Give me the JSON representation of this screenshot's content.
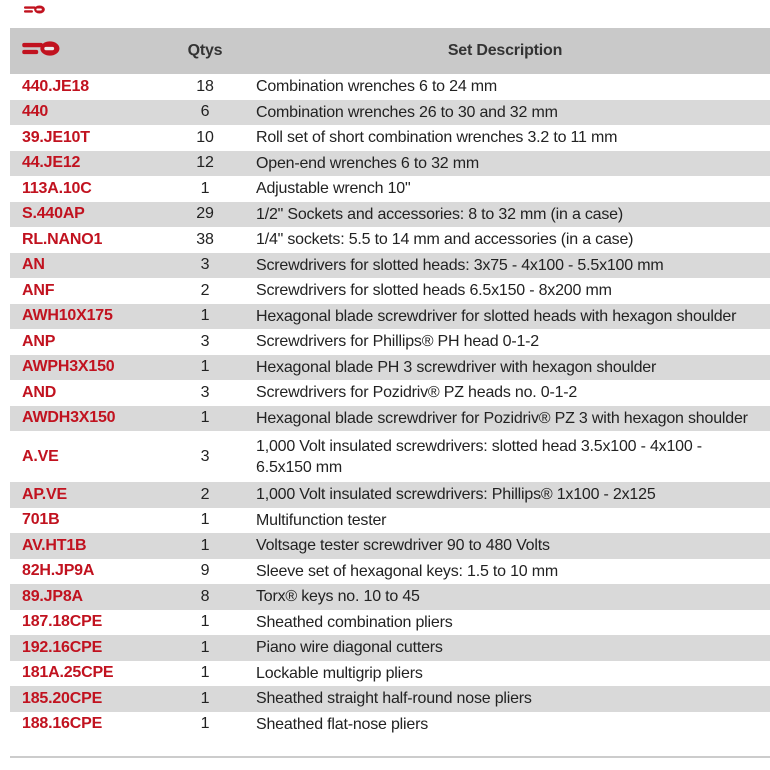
{
  "colors": {
    "red": "#c1121f",
    "header_bg": "#c9c9c9",
    "stripe_bg": "#d9d9d9",
    "text": "#222222",
    "rule": "#cccccc"
  },
  "header": {
    "logo_icon": "brand-speed-logo-icon",
    "qtys_label": "Qtys",
    "set_description_label": "Set Description"
  },
  "rows": [
    {
      "ref": "440.JE18",
      "qty": "18",
      "description": "Combination wrenches 6 to 24 mm"
    },
    {
      "ref": "440",
      "qty": "6",
      "description": "Combination wrenches 26 to 30 and 32 mm"
    },
    {
      "ref": "39.JE10T",
      "qty": "10",
      "description": "Roll set of short combination wrenches 3.2 to 11 mm"
    },
    {
      "ref": "44.JE12",
      "qty": "12",
      "description": "Open-end wrenches 6 to 32 mm"
    },
    {
      "ref": "113A.10C",
      "qty": "1",
      "description": "Adjustable wrench 10\""
    },
    {
      "ref": "S.440AP",
      "qty": "29",
      "description": "1/2\" Sockets and accessories: 8 to 32 mm (in a case)"
    },
    {
      "ref": "RL.NANO1",
      "qty": "38",
      "description": "1/4\" sockets: 5.5 to 14 mm and accessories (in a case)"
    },
    {
      "ref": "AN",
      "qty": "3",
      "description": "Screwdrivers for slotted heads: 3x75 - 4x100 - 5.5x100 mm"
    },
    {
      "ref": "ANF",
      "qty": "2",
      "description": "Screwdrivers for slotted heads 6.5x150 - 8x200 mm"
    },
    {
      "ref": "AWH10X175",
      "qty": "1",
      "description": "Hexagonal blade screwdriver for slotted heads with hexagon shoulder"
    },
    {
      "ref": "ANP",
      "qty": "3",
      "description": "Screwdrivers for Phillips® PH head 0-1-2"
    },
    {
      "ref": "AWPH3X150",
      "qty": "1",
      "description": "Hexagonal blade PH 3 screwdriver with hexagon shoulder"
    },
    {
      "ref": "AND",
      "qty": "3",
      "description": "Screwdrivers for Pozidriv® PZ heads no. 0-1-2"
    },
    {
      "ref": "AWDH3X150",
      "qty": "1",
      "description": "Hexagonal blade screwdriver for Pozidriv® PZ 3 with hexagon shoulder"
    },
    {
      "ref": "A.VE",
      "qty": "3",
      "description": [
        "1,000 Volt insulated screwdrivers: slotted head 3.5x100 - 4x100 -",
        "6.5x150 mm"
      ]
    },
    {
      "ref": "AP.VE",
      "qty": "2",
      "description": "1,000 Volt insulated screwdrivers: Phillips® 1x100 - 2x125"
    },
    {
      "ref": "701B",
      "qty": "1",
      "description": "Multifunction tester"
    },
    {
      "ref": "AV.HT1B",
      "qty": "1",
      "description": "Voltsage tester screwdriver 90 to 480 Volts"
    },
    {
      "ref": "82H.JP9A",
      "qty": "9",
      "description": "Sleeve set of hexagonal keys: 1.5 to 10 mm"
    },
    {
      "ref": "89.JP8A",
      "qty": "8",
      "description": "Torx® keys no. 10 to 45"
    },
    {
      "ref": "187.18CPE",
      "qty": "1",
      "description": "Sheathed combination pliers"
    },
    {
      "ref": "192.16CPE",
      "qty": "1",
      "description": "Piano wire diagonal cutters"
    },
    {
      "ref": "181A.25CPE",
      "qty": "1",
      "description": "Lockable multigrip pliers"
    },
    {
      "ref": "185.20CPE",
      "qty": "1",
      "description": "Sheathed straight half-round nose pliers"
    },
    {
      "ref": "188.16CPE",
      "qty": "1",
      "description": "Sheathed flat-nose pliers"
    }
  ]
}
